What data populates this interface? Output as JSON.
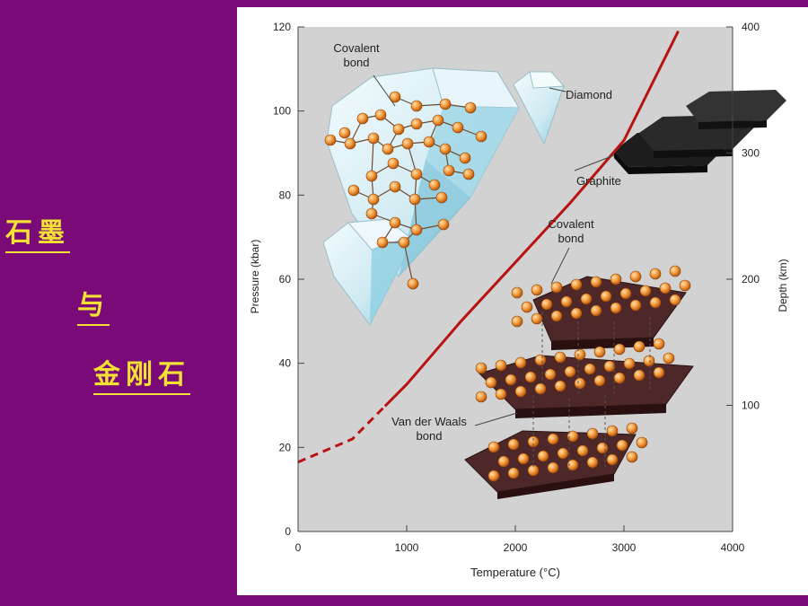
{
  "slide": {
    "title_parts": [
      "石墨",
      "与",
      "金刚石"
    ],
    "colors": {
      "background": "#7a0a78",
      "text": "#f3e233"
    }
  },
  "diagram": {
    "left_axis": {
      "label": "Pressure (kbar)",
      "ticks": [
        "0",
        "20",
        "40",
        "60",
        "80",
        "100",
        "120"
      ]
    },
    "right_axis": {
      "label": "Depth (km)",
      "ticks": [
        "100",
        "200",
        "300",
        "400"
      ]
    },
    "x_axis": {
      "label": "Temperature (°C)",
      "ticks": [
        "0",
        "1000",
        "2000",
        "3000",
        "4000"
      ]
    },
    "annotations": {
      "covalent_bond_top_line1": "Covalent",
      "covalent_bond_top_line2": "bond",
      "diamond": "Diamond",
      "graphite": "Graphite",
      "covalent_bond_mid_line1": "Covalent",
      "covalent_bond_mid_line2": "bond",
      "vdw_line1": "Van der Waals",
      "vdw_line2": "bond"
    },
    "boundary": {
      "points": [
        [
          0,
          16.5
        ],
        [
          500,
          22
        ],
        [
          1000,
          35
        ],
        [
          1500,
          50
        ],
        [
          2000,
          64
        ],
        [
          2500,
          78
        ],
        [
          3000,
          93
        ],
        [
          3500,
          119
        ]
      ],
      "solid_from_x": 800,
      "color": "#b81414"
    }
  }
}
